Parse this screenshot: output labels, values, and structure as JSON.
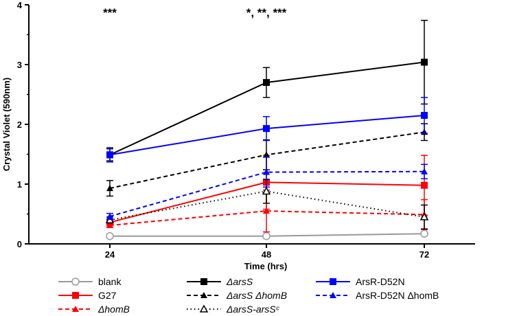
{
  "chart_data": {
    "type": "line",
    "title": "",
    "xlabel": "Time (hrs)",
    "ylabel": "Crystal Violet (590nm)",
    "x": [
      24,
      48,
      72
    ],
    "xticks": [
      "24",
      "48",
      "72"
    ],
    "ylim": [
      0,
      4
    ],
    "yticks": [
      "0",
      "1",
      "2",
      "3",
      "4"
    ],
    "grid": false,
    "legend_position": "bottom",
    "annotations": [
      {
        "x": 24,
        "text": "***"
      },
      {
        "x": 48,
        "text": "*, **, ***"
      }
    ],
    "series": [
      {
        "name": "blank",
        "italic": false,
        "values": [
          0.13,
          0.13,
          0.17
        ],
        "errors": [
          0.0,
          0.0,
          0.0
        ],
        "color": "#999999",
        "dash": "solid",
        "marker": "circle-open"
      },
      {
        "name": "G27",
        "italic": false,
        "values": [
          0.36,
          1.03,
          0.98
        ],
        "errors": [
          0.05,
          0.45,
          0.5
        ],
        "color": "#ff0000",
        "dash": "solid",
        "marker": "square"
      },
      {
        "name": "ΔhomB",
        "italic": true,
        "values": [
          0.31,
          0.55,
          0.49
        ],
        "errors": [
          0.03,
          0.35,
          0.25
        ],
        "color": "#ff0000",
        "dash": "dash",
        "marker": "triangle"
      },
      {
        "name": "ΔarsS",
        "italic": true,
        "values": [
          1.49,
          2.7,
          3.04
        ],
        "errors": [
          0.1,
          0.25,
          0.7
        ],
        "color": "#000000",
        "dash": "solid",
        "marker": "square"
      },
      {
        "name": "ΔarsS ΔhomB",
        "italic": true,
        "values": [
          0.93,
          1.49,
          1.87
        ],
        "errors": [
          0.13,
          0.25,
          0.14
        ],
        "color": "#000000",
        "dash": "dash",
        "marker": "triangle"
      },
      {
        "name": "ΔarsS-arsSᶜ",
        "italic": true,
        "values": [
          0.4,
          0.88,
          0.45
        ],
        "errors": [
          0.05,
          0.2,
          0.2
        ],
        "color": "#000000",
        "dash": "dot",
        "marker": "triangle-open"
      },
      {
        "name": "ArsR-D52N",
        "italic": false,
        "values": [
          1.49,
          1.93,
          2.15
        ],
        "errors": [
          0.12,
          0.2,
          0.3
        ],
        "color": "#0000ff",
        "dash": "solid",
        "marker": "square"
      },
      {
        "name": "ArsR-D52N ΔhomB",
        "italic": false,
        "values": [
          0.46,
          1.2,
          1.21
        ],
        "errors": [
          0.05,
          0.25,
          0.12
        ],
        "color": "#0000ff",
        "dash": "dash",
        "marker": "triangle"
      }
    ]
  }
}
